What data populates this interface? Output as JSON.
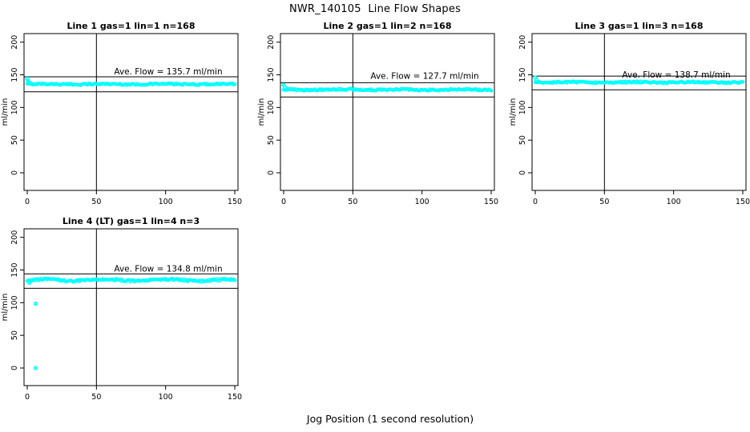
{
  "title": "NWR_140105  Line Flow Shapes",
  "xlabel": "Jog Position (1 second resolution)",
  "colors": {
    "points": "#00ffff",
    "axis": "#000000",
    "background": "#ffffff"
  },
  "chart_data": [
    {
      "type": "scatter",
      "title": "Line 1 gas=1 lin=1 n=168",
      "ylabel": "ml/min",
      "xlim": [
        0,
        150
      ],
      "ylim": [
        0,
        200
      ],
      "x_ticks": [
        0,
        50,
        100,
        150
      ],
      "y_ticks": [
        0,
        50,
        100,
        150,
        200
      ],
      "n": 168,
      "ave_flow_ml_min": 135.7,
      "ave_flow_label": "Ave. Flow =  135.7  ml/min",
      "steady_flow": 135.7,
      "start_transient_points": [
        [
          0,
          144
        ],
        [
          0.6,
          140.5
        ],
        [
          1.2,
          138.5
        ]
      ],
      "outlier_points": [],
      "ref_vertical_line_x": 50,
      "ref_band_lower": 124,
      "ref_band_upper": 147,
      "label_center_y": 155,
      "jitter": 1.1,
      "wave_amp": 0.4,
      "grid_row": 0,
      "grid_col": 0
    },
    {
      "type": "scatter",
      "title": "Line 2 gas=1 lin=2 n=168",
      "ylabel": "ml/min",
      "xlim": [
        0,
        150
      ],
      "ylim": [
        0,
        200
      ],
      "x_ticks": [
        0,
        50,
        100,
        150
      ],
      "y_ticks": [
        0,
        50,
        100,
        150,
        200
      ],
      "n": 168,
      "ave_flow_ml_min": 127.7,
      "ave_flow_label": "Ave. Flow =  127.7  ml/min",
      "steady_flow": 127.3,
      "start_transient_points": [
        [
          0,
          134.5
        ],
        [
          0.8,
          131
        ]
      ],
      "outlier_points": [],
      "ref_vertical_line_x": 50,
      "ref_band_lower": 116,
      "ref_band_upper": 138,
      "label_center_y": 148,
      "jitter": 1.2,
      "wave_amp": 0.5,
      "grid_row": 0,
      "grid_col": 1
    },
    {
      "type": "scatter",
      "title": "Line 3 gas=1 lin=3 n=168",
      "ylabel": "ml/min",
      "xlim": [
        0,
        150
      ],
      "ylim": [
        0,
        200
      ],
      "x_ticks": [
        0,
        50,
        100,
        150
      ],
      "y_ticks": [
        0,
        50,
        100,
        150,
        200
      ],
      "n": 168,
      "ave_flow_ml_min": 138.7,
      "ave_flow_label": "Ave. Flow =  138.7  ml/min",
      "steady_flow": 138.5,
      "start_transient_points": [
        [
          0,
          146
        ],
        [
          0.8,
          142.5
        ]
      ],
      "outlier_points": [],
      "ref_vertical_line_x": 50,
      "ref_band_lower": 127,
      "ref_band_upper": 148,
      "label_center_y": 150,
      "jitter": 1.2,
      "wave_amp": 0.5,
      "grid_row": 0,
      "grid_col": 2
    },
    {
      "type": "scatter",
      "title": "Line 4 (LT) gas=1 lin=4 n=3",
      "ylabel": "ml/min",
      "xlim": [
        0,
        150
      ],
      "ylim": [
        0,
        200
      ],
      "x_ticks": [
        0,
        50,
        100,
        150
      ],
      "y_ticks": [
        0,
        50,
        100,
        150,
        200
      ],
      "n": 3,
      "ave_flow_ml_min": 134.8,
      "ave_flow_label": "Ave. Flow =  134.8  ml/min",
      "steady_flow": 134.5,
      "start_transient_points": [
        [
          1.5,
          130.5
        ]
      ],
      "outlier_points": [
        [
          6,
          98.5
        ],
        [
          6,
          0
        ]
      ],
      "ref_vertical_line_x": 50,
      "ref_band_lower": 122,
      "ref_band_upper": 144,
      "label_center_y": 152,
      "jitter": 1.6,
      "wave_amp": 1.3,
      "grid_row": 1,
      "grid_col": 0
    }
  ]
}
